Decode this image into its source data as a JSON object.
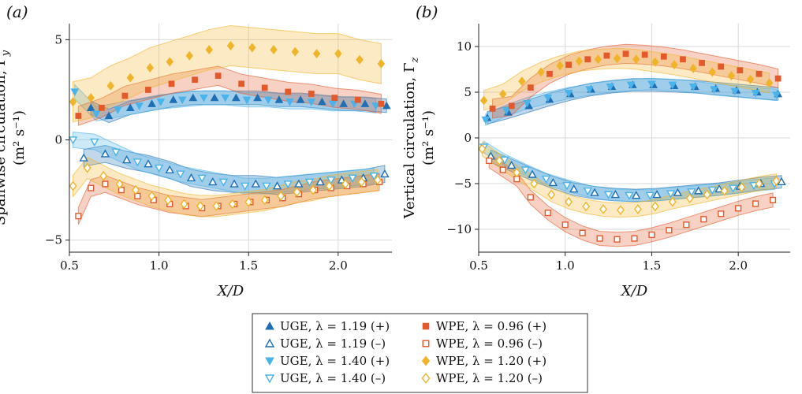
{
  "chart_data": [
    {
      "type": "scatter",
      "panel_label": "(a)",
      "xlabel": "X/D",
      "ylabel_line1": "Spanwise circulation, Γ",
      "ylabel_sub": "y",
      "ylabel_line2": "(m² s⁻¹)",
      "xlim": [
        0.5,
        2.3
      ],
      "ylim": [
        -5.6,
        5.8
      ],
      "xticks": [
        0.5,
        1.0,
        1.5,
        2.0
      ],
      "xtick_labels": [
        "0.5",
        "1.0",
        "1.5",
        "2.0"
      ],
      "yticks": [
        -5,
        0,
        5
      ],
      "ytick_labels": [
        "−5",
        "0",
        "5"
      ],
      "grid": true,
      "series": [
        {
          "name": "UGE, λ = 1.19 (+)",
          "marker": "tri-up",
          "filled": true,
          "color": "#1f6fb4",
          "band": [
            1.6,
            2.1
          ],
          "x": [
            0.62,
            0.72,
            0.84,
            0.96,
            1.08,
            1.19,
            1.31,
            1.43,
            1.55,
            1.67,
            1.79,
            1.91,
            2.03,
            2.15,
            2.27
          ],
          "y": [
            1.6,
            1.2,
            1.6,
            1.8,
            2.0,
            2.1,
            2.1,
            2.1,
            2.1,
            2.0,
            2.0,
            1.9,
            1.8,
            1.8,
            1.7
          ]
        },
        {
          "name": "UGE, λ = 1.19 (−)",
          "marker": "tri-up",
          "filled": false,
          "color": "#1f6fb4",
          "band": [
            -1.3,
            -2.3
          ],
          "x": [
            0.58,
            0.7,
            0.82,
            0.94,
            1.06,
            1.18,
            1.3,
            1.42,
            1.54,
            1.66,
            1.78,
            1.9,
            2.02,
            2.14,
            2.26
          ],
          "y": [
            -0.9,
            -0.7,
            -1.0,
            -1.2,
            -1.5,
            -1.9,
            -2.1,
            -2.2,
            -2.2,
            -2.3,
            -2.2,
            -2.1,
            -2.0,
            -1.9,
            -1.7
          ]
        },
        {
          "name": "UGE, λ = 1.40 (+)",
          "marker": "tri-down",
          "filled": true,
          "color": "#4ab3ea",
          "band": [
            1.6,
            2.2
          ],
          "x": [
            0.53,
            0.65,
            0.77,
            0.89,
            1.01,
            1.13,
            1.25,
            1.37,
            1.49,
            1.61,
            1.73,
            1.85,
            1.97,
            2.09,
            2.21
          ],
          "y": [
            2.4,
            1.3,
            1.5,
            1.7,
            1.9,
            2.0,
            2.1,
            2.1,
            2.0,
            2.0,
            1.9,
            1.9,
            1.8,
            1.8,
            1.7
          ]
        },
        {
          "name": "UGE, λ = 1.40 (−)",
          "marker": "tri-down",
          "filled": false,
          "color": "#4ab3ea",
          "band": [
            -1.4,
            -2.2
          ],
          "x": [
            0.52,
            0.64,
            0.76,
            0.88,
            1.0,
            1.12,
            1.24,
            1.36,
            1.48,
            1.6,
            1.72,
            1.84,
            1.96,
            2.08,
            2.2
          ],
          "y": [
            0.0,
            -0.1,
            -0.6,
            -1.1,
            -1.4,
            -1.7,
            -1.9,
            -2.1,
            -2.3,
            -2.3,
            -2.2,
            -2.1,
            -2.0,
            -1.9,
            -1.8
          ]
        },
        {
          "name": "WPE, λ = 0.96 (+)",
          "marker": "square",
          "filled": true,
          "color": "#e3592b",
          "band": [
            1.1,
            2.4
          ],
          "x": [
            0.55,
            0.68,
            0.81,
            0.94,
            1.07,
            1.2,
            1.33,
            1.46,
            1.59,
            1.72,
            1.85,
            1.98,
            2.11,
            2.24
          ],
          "y": [
            1.2,
            1.6,
            2.2,
            2.5,
            2.8,
            3.0,
            3.2,
            2.8,
            2.6,
            2.4,
            2.3,
            2.1,
            2.0,
            1.8
          ]
        },
        {
          "name": "WPE, λ = 0.96 (−)",
          "marker": "square",
          "filled": false,
          "color": "#e3592b",
          "band": [
            -2.9,
            -3.9
          ],
          "x": [
            0.55,
            0.62,
            0.7,
            0.79,
            0.88,
            0.97,
            1.06,
            1.15,
            1.24,
            1.33,
            1.42,
            1.51,
            1.6,
            1.69,
            1.78,
            1.87,
            1.96,
            2.05,
            2.14,
            2.23
          ],
          "y": [
            -3.8,
            -2.4,
            -2.2,
            -2.5,
            -2.8,
            -3.0,
            -3.2,
            -3.3,
            -3.4,
            -3.3,
            -3.2,
            -3.1,
            -3.0,
            -2.9,
            -2.7,
            -2.5,
            -2.4,
            -2.3,
            -2.2,
            -2.1
          ]
        },
        {
          "name": "WPE, λ = 1.20 (+)",
          "marker": "diamond",
          "filled": true,
          "color": "#f0b429",
          "band": [
            1.7,
            6.0
          ],
          "x": [
            0.52,
            0.62,
            0.73,
            0.84,
            0.95,
            1.06,
            1.17,
            1.28,
            1.4,
            1.52,
            1.64,
            1.76,
            1.88,
            2.0,
            2.12,
            2.24
          ],
          "y": [
            1.9,
            2.1,
            2.7,
            3.1,
            3.6,
            3.9,
            4.2,
            4.5,
            4.7,
            4.6,
            4.5,
            4.4,
            4.3,
            4.3,
            4.0,
            3.8
          ]
        },
        {
          "name": "WPE, λ = 1.20 (−)",
          "marker": "diamond",
          "filled": false,
          "color": "#f0b429",
          "band": [
            -2.2,
            -3.8
          ],
          "x": [
            0.52,
            0.6,
            0.69,
            0.78,
            0.87,
            0.96,
            1.05,
            1.14,
            1.23,
            1.32,
            1.41,
            1.5,
            1.59,
            1.68,
            1.77,
            1.86,
            1.95,
            2.04,
            2.13,
            2.22
          ],
          "y": [
            -2.3,
            -1.4,
            -1.8,
            -2.2,
            -2.5,
            -2.8,
            -3.0,
            -3.2,
            -3.3,
            -3.3,
            -3.2,
            -3.1,
            -3.0,
            -2.8,
            -2.6,
            -2.5,
            -2.3,
            -2.2,
            -2.1,
            -2.0
          ]
        }
      ]
    },
    {
      "type": "scatter",
      "panel_label": "(b)",
      "xlabel": "X/D",
      "ylabel_line1": "Vertical circulation, Γ",
      "ylabel_sub": "z",
      "ylabel_line2": "(m² s⁻¹)",
      "xlim": [
        0.5,
        2.3
      ],
      "ylim": [
        -12.5,
        12.5
      ],
      "xticks": [
        0.5,
        1.0,
        1.5,
        2.0
      ],
      "xtick_labels": [
        "0.5",
        "1.0",
        "1.5",
        "2.0"
      ],
      "yticks": [
        -10,
        -5,
        0,
        5,
        10
      ],
      "ytick_labels": [
        "−10",
        "−5",
        "0",
        "5",
        "10"
      ],
      "grid": true,
      "series": [
        {
          "name": "UGE, λ = 1.19 (+)",
          "marker": "tri-up",
          "filled": true,
          "color": "#1f6fb4",
          "band": [
            4.0,
            6.5
          ],
          "x": [
            0.55,
            0.67,
            0.79,
            0.91,
            1.03,
            1.15,
            1.27,
            1.39,
            1.51,
            1.63,
            1.75,
            1.87,
            1.99,
            2.11,
            2.23
          ],
          "y": [
            2.2,
            2.8,
            3.5,
            4.2,
            4.8,
            5.3,
            5.6,
            5.8,
            5.8,
            5.7,
            5.6,
            5.4,
            5.2,
            5.0,
            4.8
          ]
        },
        {
          "name": "UGE, λ = 1.19 (−)",
          "marker": "tri-up",
          "filled": false,
          "color": "#1f6fb4",
          "band": [
            -4.5,
            -7.0
          ],
          "x": [
            0.57,
            0.69,
            0.81,
            0.93,
            1.05,
            1.17,
            1.29,
            1.41,
            1.53,
            1.65,
            1.77,
            1.89,
            2.01,
            2.13,
            2.25
          ],
          "y": [
            -2.0,
            -3.0,
            -4.0,
            -4.9,
            -5.6,
            -6.0,
            -6.2,
            -6.3,
            -6.2,
            -6.0,
            -5.8,
            -5.6,
            -5.3,
            -5.0,
            -4.8
          ]
        },
        {
          "name": "UGE, λ = 1.40 (+)",
          "marker": "tri-down",
          "filled": true,
          "color": "#4ab3ea",
          "band": [
            4.5,
            6.6
          ],
          "x": [
            0.54,
            0.66,
            0.78,
            0.9,
            1.02,
            1.14,
            1.26,
            1.38,
            1.5,
            1.62,
            1.74,
            1.86,
            1.98,
            2.1,
            2.22
          ],
          "y": [
            2.0,
            3.0,
            3.8,
            4.4,
            4.9,
            5.3,
            5.6,
            5.8,
            5.9,
            5.8,
            5.6,
            5.3,
            5.1,
            4.9,
            4.7
          ]
        },
        {
          "name": "UGE, λ = 1.40 (−)",
          "marker": "tri-down",
          "filled": false,
          "color": "#4ab3ea",
          "band": [
            -4.8,
            -7.0
          ],
          "x": [
            0.53,
            0.65,
            0.77,
            0.89,
            1.01,
            1.13,
            1.25,
            1.37,
            1.49,
            1.61,
            1.73,
            1.85,
            1.97,
            2.09,
            2.21
          ],
          "y": [
            -1.0,
            -2.4,
            -3.5,
            -4.5,
            -5.2,
            -5.8,
            -6.2,
            -6.3,
            -6.3,
            -6.1,
            -5.9,
            -5.7,
            -5.5,
            -5.2,
            -5.0
          ]
        },
        {
          "name": "WPE, λ = 0.96 (+)",
          "marker": "square",
          "filled": true,
          "color": "#e3592b",
          "band": [
            5.5,
            10.0
          ],
          "x": [
            0.58,
            0.69,
            0.8,
            0.91,
            1.02,
            1.13,
            1.24,
            1.35,
            1.46,
            1.57,
            1.68,
            1.79,
            1.9,
            2.01,
            2.12,
            2.23
          ],
          "y": [
            3.2,
            3.5,
            5.5,
            7.0,
            8.0,
            8.6,
            9.0,
            9.2,
            9.1,
            8.9,
            8.6,
            8.2,
            7.8,
            7.4,
            7.0,
            6.5
          ]
        },
        {
          "name": "WPE, λ = 0.96 (−)",
          "marker": "square",
          "filled": false,
          "color": "#e3592b",
          "band": [
            -9.0,
            -12.0
          ],
          "x": [
            0.56,
            0.64,
            0.72,
            0.8,
            0.9,
            1.0,
            1.1,
            1.2,
            1.3,
            1.4,
            1.5,
            1.6,
            1.7,
            1.8,
            1.9,
            2.0,
            2.1,
            2.2
          ],
          "y": [
            -2.5,
            -3.5,
            -4.5,
            -6.5,
            -8.2,
            -9.5,
            -10.4,
            -11.0,
            -11.1,
            -11.0,
            -10.6,
            -10.1,
            -9.5,
            -8.9,
            -8.3,
            -7.7,
            -7.2,
            -6.8
          ]
        },
        {
          "name": "WPE, λ = 1.20 (+)",
          "marker": "diamond",
          "filled": true,
          "color": "#f0b429",
          "band": [
            5.0,
            9.8
          ],
          "x": [
            0.53,
            0.64,
            0.75,
            0.86,
            0.97,
            1.08,
            1.19,
            1.3,
            1.41,
            1.52,
            1.63,
            1.74,
            1.85,
            1.96,
            2.07,
            2.18
          ],
          "y": [
            4.1,
            4.8,
            6.2,
            7.2,
            7.9,
            8.4,
            8.6,
            8.7,
            8.6,
            8.3,
            8.0,
            7.6,
            7.2,
            6.8,
            6.4,
            6.0
          ]
        },
        {
          "name": "WPE, λ = 1.20 (−)",
          "marker": "diamond",
          "filled": false,
          "color": "#f0b429",
          "band": [
            -6.0,
            -9.0
          ],
          "x": [
            0.52,
            0.62,
            0.72,
            0.82,
            0.92,
            1.02,
            1.12,
            1.22,
            1.32,
            1.42,
            1.52,
            1.62,
            1.72,
            1.82,
            1.92,
            2.02,
            2.12,
            2.22
          ],
          "y": [
            -1.2,
            -2.5,
            -3.8,
            -5.0,
            -6.2,
            -7.0,
            -7.5,
            -7.8,
            -7.9,
            -7.8,
            -7.5,
            -7.0,
            -6.6,
            -6.2,
            -5.8,
            -5.4,
            -5.0,
            -4.7
          ]
        }
      ]
    }
  ],
  "legend": {
    "entries": [
      {
        "label": "UGE, λ = 1.19 (+)",
        "marker": "tri-up",
        "filled": true,
        "color": "#1f6fb4"
      },
      {
        "label": "WPE, λ = 0.96  (+)",
        "marker": "square",
        "filled": true,
        "color": "#e3592b"
      },
      {
        "label": "UGE, λ = 1.19 (–)",
        "marker": "tri-up",
        "filled": false,
        "color": "#1f6fb4"
      },
      {
        "label": "WPE, λ = 0.96  (–)",
        "marker": "square",
        "filled": false,
        "color": "#e3592b"
      },
      {
        "label": "UGE, λ = 1.40 (+)",
        "marker": "tri-down",
        "filled": true,
        "color": "#4ab3ea"
      },
      {
        "label": "WPE, λ = 1.20 (+)",
        "marker": "diamond",
        "filled": true,
        "color": "#f0b429"
      },
      {
        "label": "UGE, λ = 1.40 (–)",
        "marker": "tri-down",
        "filled": false,
        "color": "#4ab3ea"
      },
      {
        "label": "WPE, λ = 1.20 (–)",
        "marker": "diamond",
        "filled": false,
        "color": "#f0b429"
      }
    ]
  }
}
